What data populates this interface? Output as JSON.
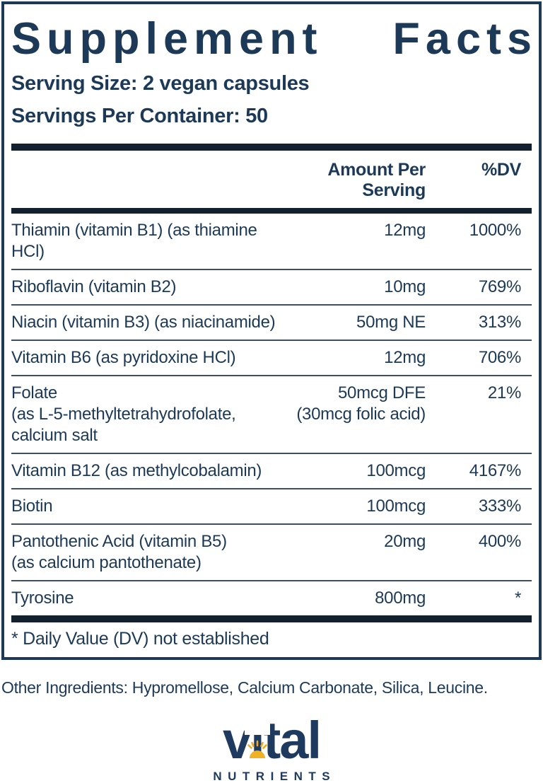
{
  "panel": {
    "title_words": [
      "Supplement",
      "Facts"
    ],
    "serving_size": "Serving Size: 2 vegan capsules",
    "servings_per_container": "Servings Per Container: 50",
    "columns": {
      "amount": "Amount Per Serving",
      "dv": "%DV"
    },
    "rows": [
      {
        "name": [
          "Thiamin (vitamin B1) (as thiamine HCl)"
        ],
        "amount": [
          "12mg"
        ],
        "dv": "1000%"
      },
      {
        "name": [
          "Riboflavin (vitamin B2)"
        ],
        "amount": [
          "10mg"
        ],
        "dv": "769%"
      },
      {
        "name": [
          "Niacin (vitamin B3) (as niacinamide)"
        ],
        "amount": [
          "50mg NE"
        ],
        "dv": "313%"
      },
      {
        "name": [
          "Vitamin B6 (as pyridoxine HCl)"
        ],
        "amount": [
          "12mg"
        ],
        "dv": "706%"
      },
      {
        "name": [
          "Folate",
          "(as L-5-methyltetrahydrofolate,",
          "calcium salt"
        ],
        "amount": [
          "50mcg DFE",
          "(30mcg folic acid)"
        ],
        "dv": "21%"
      },
      {
        "name": [
          "Vitamin B12 (as methylcobalamin)"
        ],
        "amount": [
          "100mcg"
        ],
        "dv": "4167%"
      },
      {
        "name": [
          "Biotin"
        ],
        "amount": [
          "100mcg"
        ],
        "dv": "333%"
      },
      {
        "name": [
          "Pantothenic Acid (vitamin B5)",
          "(as calcium pantothenate)"
        ],
        "amount": [
          "20mg"
        ],
        "dv": "400%"
      },
      {
        "name": [
          "Tyrosine"
        ],
        "amount": [
          "800mg"
        ],
        "dv": "*"
      }
    ],
    "footnote": "* Daily Value (DV) not established"
  },
  "other_ingredients": "Other Ingredients: Hypromellose, Calcium Carbonate, Silica, Leucine.",
  "logo": {
    "wordmark": "vital",
    "subtext": "NUTRIENTS"
  },
  "colors": {
    "navy": "#1c3a57",
    "bar": "#13212f",
    "separator": "#3d4e60",
    "sun_gold": "#f0b125",
    "sun_ray": "#f5a81e",
    "logo_navy": "#1e3a5f"
  }
}
